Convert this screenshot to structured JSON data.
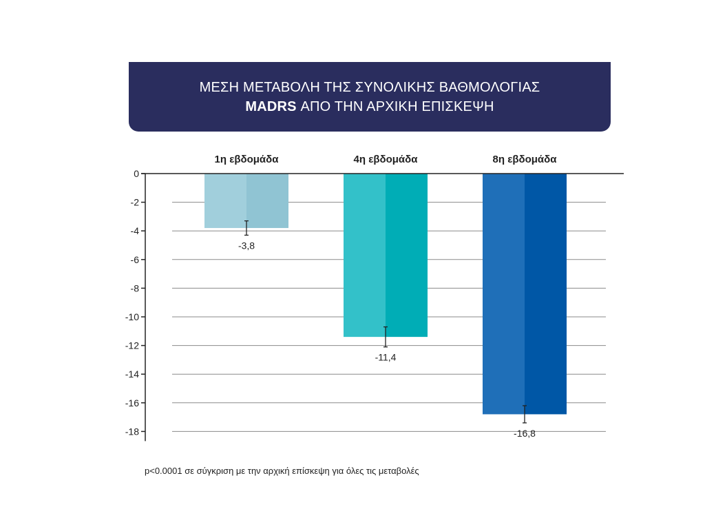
{
  "title": {
    "line1": "ΜΕΣΗ ΜΕΤΑΒΟΛΗ ΤΗΣ ΣΥΝΟΛΙΚΗΣ ΒΑΘΜΟΛΟΓΙΑΣ",
    "line2_bold": "MADRS",
    "line2_rest": " ΑΠΟ ΤΗΝ ΑΡΧΙΚΗ ΕΠΙΣΚΕΨΗ"
  },
  "footnote": "p<0.0001 σε σύγκριση με την αρχική επίσκεψη για όλες τις μεταβολές",
  "colors": {
    "banner": "#2a2d5e",
    "bars": [
      {
        "light": "#a1cfdc",
        "dark": "#90c4d3"
      },
      {
        "light": "#33c1c9",
        "dark": "#00adb6"
      },
      {
        "light": "#1f6fb8",
        "dark": "#0057a6"
      }
    ]
  },
  "chart_data": {
    "type": "bar",
    "categories": [
      "1η εβδομάδα",
      "4η εβδομάδα",
      "8η εβδομάδα"
    ],
    "values": [
      -3.8,
      -11.4,
      -16.8
    ],
    "value_labels": [
      "-3,8",
      "-11,4",
      "-16,8"
    ],
    "error_bars": [
      0.5,
      0.7,
      0.6
    ],
    "ylim": [
      -18,
      0
    ],
    "yticks": [
      0,
      -2,
      -4,
      -6,
      -8,
      -10,
      -12,
      -14,
      -16,
      -18
    ],
    "grid": true,
    "xlabel": "",
    "ylabel": ""
  }
}
